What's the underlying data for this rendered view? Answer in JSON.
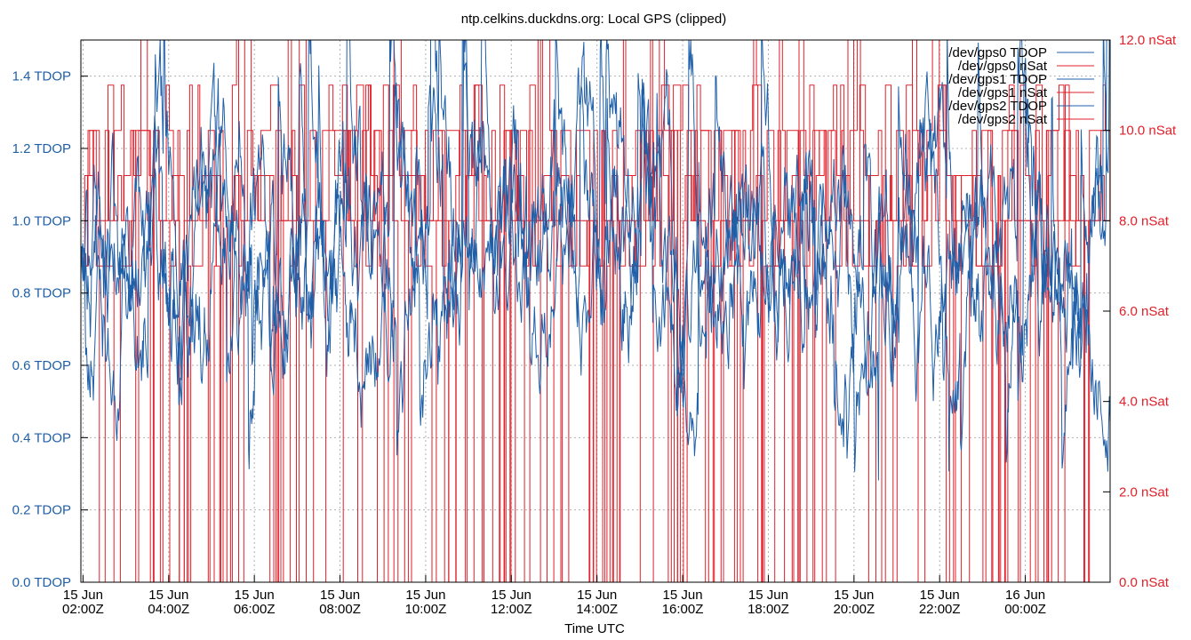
{
  "chart_data": {
    "type": "line",
    "title": "ntp.celkins.duckdns.org: Local GPS (clipped)",
    "xlabel": "Time UTC",
    "x_ticks": [
      {
        "date": "15 Jun",
        "time": "02:00Z"
      },
      {
        "date": "15 Jun",
        "time": "04:00Z"
      },
      {
        "date": "15 Jun",
        "time": "06:00Z"
      },
      {
        "date": "15 Jun",
        "time": "08:00Z"
      },
      {
        "date": "15 Jun",
        "time": "10:00Z"
      },
      {
        "date": "15 Jun",
        "time": "12:00Z"
      },
      {
        "date": "15 Jun",
        "time": "14:00Z"
      },
      {
        "date": "15 Jun",
        "time": "16:00Z"
      },
      {
        "date": "15 Jun",
        "time": "18:00Z"
      },
      {
        "date": "15 Jun",
        "time": "20:00Z"
      },
      {
        "date": "15 Jun",
        "time": "22:00Z"
      },
      {
        "date": "16 Jun",
        "time": "00:00Z"
      }
    ],
    "x_range_hours": [
      1.95,
      25.98
    ],
    "y_left": {
      "ticks": [
        "0.0 TDOP",
        "0.2 TDOP",
        "0.4 TDOP",
        "0.6 TDOP",
        "0.8 TDOP",
        "1.0 TDOP",
        "1.2 TDOP",
        "1.4 TDOP"
      ],
      "tick_values": [
        0.0,
        0.2,
        0.4,
        0.6,
        0.8,
        1.0,
        1.2,
        1.4
      ],
      "ylim": [
        0,
        1.5
      ],
      "color": "#1f5fa8"
    },
    "y_right": {
      "ticks": [
        "0.0 nSat",
        "2.0 nSat",
        "4.0 nSat",
        "6.0 nSat",
        "8.0 nSat",
        "10.0 nSat",
        "12.0 nSat"
      ],
      "tick_values": [
        0,
        2,
        4,
        6,
        8,
        10,
        12
      ],
      "ylim": [
        0,
        12
      ],
      "color": "#e0202a"
    },
    "grid": true,
    "legend_position": "top-right",
    "series": [
      {
        "name": "/dev/gps0 TDOP",
        "axis": "left",
        "color": "#1f5fa8",
        "kind": "tdop",
        "seed": 11
      },
      {
        "name": "/dev/gps0 nSat",
        "axis": "right",
        "color": "#e0202a",
        "kind": "nsat",
        "seed": 23
      },
      {
        "name": "/dev/gps1 TDOP",
        "axis": "left",
        "color": "#1f5fa8",
        "kind": "tdop",
        "seed": 37
      },
      {
        "name": "/dev/gps1 nSat",
        "axis": "right",
        "color": "#e0202a",
        "kind": "nsat",
        "seed": 51
      },
      {
        "name": "/dev/gps2 TDOP",
        "axis": "left",
        "color": "#1f5fa8",
        "kind": "tdop",
        "seed": 67
      },
      {
        "name": "/dev/gps2 nSat",
        "axis": "right",
        "color": "#e0202a",
        "kind": "nsat",
        "seed": 83
      }
    ]
  }
}
